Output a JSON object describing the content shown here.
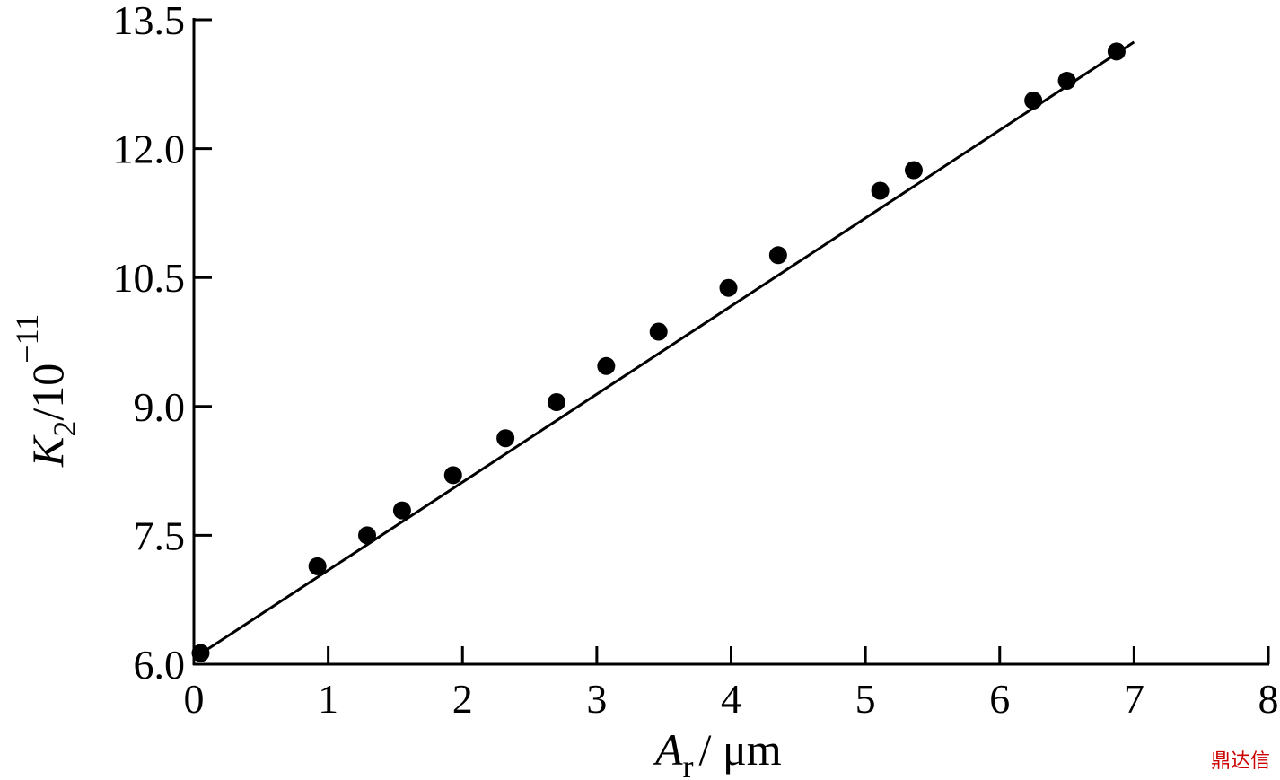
{
  "chart_data": {
    "type": "scatter",
    "x_label": {
      "symbol": "A",
      "subscript": "r",
      "rest": "/ μm"
    },
    "y_label": {
      "symbol": "K",
      "subscript": "2",
      "rest": "/10",
      "superscript": "−11"
    },
    "watermark": "鼎达信",
    "xlim": [
      0,
      8
    ],
    "xticks": [
      0,
      1,
      2,
      3,
      4,
      5,
      6,
      7,
      8
    ],
    "ylim": [
      6.0,
      13.5
    ],
    "yticks": [
      {
        "value": 6.0,
        "label": "6.0"
      },
      7.5,
      {
        "value": 9.0,
        "label": "9.0"
      },
      10.5,
      {
        "value": 12.0,
        "label": "12.0"
      },
      13.5
    ],
    "series": [
      {
        "kind": "points",
        "color": "#000000",
        "x": [
          0.05,
          0.92,
          1.29,
          1.55,
          1.93,
          2.32,
          2.7,
          3.07,
          3.46,
          3.98,
          4.35,
          5.11,
          5.36,
          6.25,
          6.5,
          6.87
        ],
        "values": [
          6.13,
          7.14,
          7.5,
          7.79,
          8.2,
          8.63,
          9.05,
          9.47,
          9.87,
          10.38,
          10.76,
          11.51,
          11.75,
          12.56,
          12.79,
          13.13
        ]
      },
      {
        "kind": "line",
        "color": "#000000",
        "x": [
          0,
          7
        ],
        "values": [
          6.07,
          13.24
        ]
      }
    ]
  }
}
